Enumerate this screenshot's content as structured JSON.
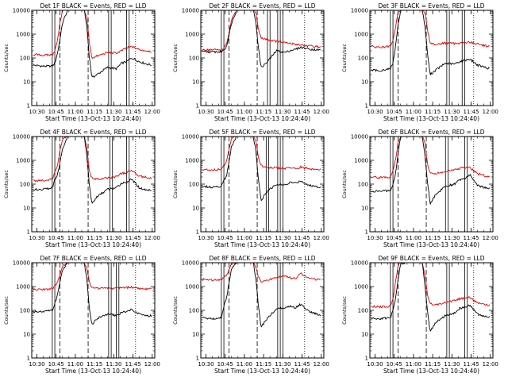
{
  "colors": {
    "events": "#000000",
    "lld": "#e00000",
    "axis": "#000000"
  },
  "chart_data": [
    {
      "type": "line",
      "title": "Det 1F BLACK = Events, RED = LLD",
      "xlabel": "Start Time (13-Oct-13 10:24:40)",
      "ylabel": "Counts/sec",
      "scale_y": "log",
      "ylim": [
        1,
        10000
      ],
      "xlim": [
        "10:26",
        "12:02"
      ],
      "x_ticks": [
        "10:30",
        "10:45",
        "11:00",
        "11:15",
        "11:30",
        "11:45",
        "12:00"
      ],
      "y_ticks": [
        "1",
        "10",
        "100",
        "1000",
        "10000"
      ],
      "x": [
        "10:27",
        "10:35",
        "10:42",
        "10:44",
        "10:46",
        "10:48",
        "10:50",
        "10:54",
        "10:58",
        "11:03",
        "11:07",
        "11:09",
        "11:11",
        "11:13",
        "11:17",
        "11:25",
        "11:32",
        "11:36",
        "11:40",
        "11:44",
        "11:50",
        "11:56",
        "12:00"
      ],
      "series": [
        {
          "name": "Events",
          "values": [
            50,
            45,
            45,
            60,
            150,
            600,
            3000,
            10000,
            10000,
            10000,
            10000,
            2000,
            100,
            15,
            20,
            40,
            35,
            60,
            70,
            100,
            70,
            55,
            50
          ]
        },
        {
          "name": "LLD",
          "values": [
            140,
            130,
            135,
            200,
            500,
            3000,
            10000,
            10000,
            10000,
            10000,
            10000,
            5000,
            400,
            100,
            120,
            170,
            160,
            200,
            260,
            300,
            220,
            200,
            190
          ]
        }
      ],
      "solid_lines": [
        "10:42",
        "10:44",
        "11:26",
        "11:28",
        "11:40",
        "11:42"
      ],
      "dashed_lines": [
        "10:48",
        "11:10"
      ],
      "dotted_lines": [
        "11:47"
      ]
    },
    {
      "type": "line",
      "title": "Det 2F BLACK = Events, RED = LLD",
      "xlabel": "Start Time (13-Oct-13 10:24:40)",
      "ylabel": "Counts/sec",
      "scale_y": "log",
      "ylim": [
        1,
        10000
      ],
      "xlim": [
        "10:26",
        "12:02"
      ],
      "x_ticks": [
        "10:30",
        "10:45",
        "11:00",
        "11:15",
        "11:30",
        "11:45",
        "12:00"
      ],
      "y_ticks": [
        "1",
        "10",
        "100",
        "1000",
        "10000"
      ],
      "x": [
        "10:27",
        "10:35",
        "10:42",
        "10:44",
        "10:46",
        "10:48",
        "10:50",
        "10:54",
        "10:58",
        "11:03",
        "11:07",
        "11:09",
        "11:11",
        "11:13",
        "11:17",
        "11:25",
        "11:32",
        "11:36",
        "11:40",
        "11:44",
        "11:50",
        "11:56",
        "12:00"
      ],
      "series": [
        {
          "name": "Events",
          "values": [
            180,
            180,
            180,
            220,
            300,
            900,
            3000,
            10000,
            10000,
            10000,
            10000,
            3000,
            250,
            40,
            60,
            200,
            170,
            210,
            230,
            280,
            240,
            220,
            210
          ]
        },
        {
          "name": "LLD",
          "values": [
            220,
            220,
            220,
            260,
            380,
            1100,
            4000,
            10000,
            10000,
            10000,
            10000,
            8000,
            1500,
            700,
            600,
            500,
            430,
            400,
            380,
            350,
            320,
            300,
            280
          ]
        }
      ],
      "solid_lines": [
        "10:42",
        "10:44",
        "11:18",
        "11:20",
        "11:26",
        "11:28",
        "11:30"
      ],
      "dashed_lines": [
        "10:48",
        "11:10"
      ],
      "dotted_lines": [
        "11:47"
      ]
    },
    {
      "type": "line",
      "title": "Det 3F BLACK = Events, RED = LLD",
      "xlabel": "Start Time (13-Oct-13 10:24:40)",
      "ylabel": "Counts/sec",
      "scale_y": "log",
      "ylim": [
        1,
        10000
      ],
      "xlim": [
        "10:26",
        "12:02"
      ],
      "x_ticks": [
        "10:30",
        "10:45",
        "11:00",
        "11:15",
        "11:30",
        "11:45",
        "12:00"
      ],
      "y_ticks": [
        "1",
        "10",
        "100",
        "1000",
        "10000"
      ],
      "x": [
        "10:27",
        "10:35",
        "10:42",
        "10:44",
        "10:46",
        "10:48",
        "10:50",
        "10:54",
        "10:58",
        "11:03",
        "11:07",
        "11:09",
        "11:11",
        "11:13",
        "11:17",
        "11:25",
        "11:32",
        "11:36",
        "11:40",
        "11:44",
        "11:50",
        "11:56",
        "12:00"
      ],
      "series": [
        {
          "name": "Events",
          "values": [
            30,
            30,
            35,
            60,
            300,
            2500,
            10000,
            10000,
            10000,
            10000,
            10000,
            2000,
            150,
            20,
            30,
            60,
            55,
            70,
            80,
            90,
            50,
            40,
            35
          ]
        },
        {
          "name": "LLD",
          "values": [
            300,
            280,
            300,
            500,
            2000,
            8000,
            10000,
            10000,
            10000,
            10000,
            10000,
            8000,
            1500,
            400,
            380,
            420,
            400,
            430,
            440,
            460,
            380,
            330,
            300
          ]
        }
      ],
      "solid_lines": [
        "10:42",
        "10:44",
        "11:26",
        "11:28",
        "11:38",
        "11:40"
      ],
      "dashed_lines": [
        "10:48",
        "11:10"
      ],
      "dotted_lines": [
        "11:47"
      ]
    },
    {
      "type": "line",
      "title": "Det 4F BLACK = Events, RED = LLD",
      "xlabel": "Start Time (13-Oct-13 10:24:40)",
      "ylabel": "Counts/sec",
      "scale_y": "log",
      "ylim": [
        1,
        10000
      ],
      "xlim": [
        "10:26",
        "12:02"
      ],
      "x_ticks": [
        "10:30",
        "10:45",
        "11:00",
        "11:15",
        "11:30",
        "11:45",
        "12:00"
      ],
      "y_ticks": [
        "1",
        "10",
        "100",
        "1000",
        "10000"
      ],
      "x": [
        "10:27",
        "10:35",
        "10:42",
        "10:44",
        "10:46",
        "10:48",
        "10:50",
        "10:54",
        "10:58",
        "11:03",
        "11:07",
        "11:09",
        "11:11",
        "11:13",
        "11:17",
        "11:25",
        "11:32",
        "11:36",
        "11:40",
        "11:44",
        "11:50",
        "11:56",
        "12:00"
      ],
      "series": [
        {
          "name": "Events",
          "values": [
            60,
            60,
            70,
            150,
            250,
            800,
            3000,
            10000,
            10000,
            10000,
            10000,
            1500,
            80,
            15,
            30,
            60,
            70,
            110,
            120,
            160,
            70,
            55,
            60
          ]
        },
        {
          "name": "LLD",
          "values": [
            140,
            140,
            160,
            300,
            600,
            2500,
            8000,
            10000,
            10000,
            10000,
            10000,
            4000,
            300,
            180,
            160,
            180,
            210,
            280,
            300,
            380,
            220,
            190,
            180
          ]
        }
      ],
      "solid_lines": [
        "10:42",
        "10:44",
        "11:27",
        "11:29",
        "11:40",
        "11:42"
      ],
      "dashed_lines": [
        "10:48",
        "11:10"
      ],
      "dotted_lines": [
        "11:47"
      ]
    },
    {
      "type": "line",
      "title": "Det 5F BLACK = Events, RED = LLD",
      "xlabel": "Start Time (13-Oct-13 10:24:40)",
      "ylabel": "Counts/sec",
      "scale_y": "log",
      "ylim": [
        1,
        10000
      ],
      "xlim": [
        "10:26",
        "12:02"
      ],
      "x_ticks": [
        "10:30",
        "10:45",
        "11:00",
        "11:15",
        "11:30",
        "11:45",
        "12:00"
      ],
      "y_ticks": [
        "1",
        "10",
        "100",
        "1000",
        "10000"
      ],
      "x": [
        "10:27",
        "10:35",
        "10:42",
        "10:44",
        "10:46",
        "10:48",
        "10:50",
        "10:54",
        "10:58",
        "11:03",
        "11:07",
        "11:09",
        "11:11",
        "11:13",
        "11:17",
        "11:25",
        "11:32",
        "11:36",
        "11:40",
        "11:44",
        "11:50",
        "11:56",
        "12:00"
      ],
      "series": [
        {
          "name": "Events",
          "values": [
            80,
            75,
            80,
            150,
            200,
            900,
            4000,
            10000,
            10000,
            10000,
            10000,
            2500,
            150,
            20,
            45,
            100,
            90,
            120,
            110,
            140,
            90,
            80,
            75
          ]
        },
        {
          "name": "LLD",
          "values": [
            420,
            400,
            420,
            600,
            900,
            3000,
            9000,
            10000,
            10000,
            10000,
            10000,
            6000,
            1200,
            600,
            520,
            480,
            450,
            480,
            460,
            520,
            440,
            420,
            400
          ]
        }
      ],
      "solid_lines": [
        "10:42",
        "10:44",
        "11:17",
        "11:19",
        "11:26",
        "11:28",
        "11:30"
      ],
      "dashed_lines": [
        "10:48",
        "11:10"
      ],
      "dotted_lines": [
        "11:47"
      ]
    },
    {
      "type": "line",
      "title": "Det 6F BLACK = Events, RED = LLD",
      "xlabel": "Start Time (13-Oct-13 10:24:40)",
      "ylabel": "Counts/sec",
      "scale_y": "log",
      "ylim": [
        1,
        10000
      ],
      "xlim": [
        "10:26",
        "12:02"
      ],
      "x_ticks": [
        "10:30",
        "10:45",
        "11:00",
        "11:15",
        "11:30",
        "11:45",
        "12:00"
      ],
      "y_ticks": [
        "1",
        "10",
        "100",
        "1000",
        "10000"
      ],
      "x": [
        "10:27",
        "10:35",
        "10:42",
        "10:44",
        "10:46",
        "10:48",
        "10:50",
        "10:54",
        "10:58",
        "11:03",
        "11:07",
        "11:09",
        "11:11",
        "11:13",
        "11:17",
        "11:25",
        "11:32",
        "11:36",
        "11:40",
        "11:44",
        "11:50",
        "11:56",
        "12:00"
      ],
      "series": [
        {
          "name": "Events",
          "values": [
            50,
            50,
            55,
            100,
            250,
            2000,
            10000,
            10000,
            10000,
            10000,
            10000,
            1500,
            120,
            15,
            35,
            80,
            100,
            150,
            170,
            250,
            90,
            70,
            70
          ]
        },
        {
          "name": "LLD",
          "values": [
            200,
            190,
            200,
            350,
            1000,
            6000,
            10000,
            10000,
            10000,
            10000,
            10000,
            5000,
            700,
            300,
            280,
            330,
            400,
            450,
            480,
            500,
            280,
            220,
            210
          ]
        }
      ],
      "solid_lines": [
        "10:42",
        "10:44",
        "11:25",
        "11:27",
        "11:40",
        "11:42"
      ],
      "dashed_lines": [
        "10:48",
        "11:10"
      ],
      "dotted_lines": [
        "11:47"
      ]
    },
    {
      "type": "line",
      "title": "Det 7F BLACK = Events, RED = LLD",
      "xlabel": "Start Time (13-Oct-13 10:24:40)",
      "ylabel": "Counts/sec",
      "scale_y": "log",
      "ylim": [
        1,
        10000
      ],
      "xlim": [
        "10:26",
        "12:02"
      ],
      "x_ticks": [
        "10:30",
        "10:45",
        "11:00",
        "11:15",
        "11:30",
        "11:45",
        "12:00"
      ],
      "y_ticks": [
        "1",
        "10",
        "100",
        "1000",
        "10000"
      ],
      "x": [
        "10:27",
        "10:35",
        "10:42",
        "10:44",
        "10:46",
        "10:48",
        "10:50",
        "10:54",
        "10:58",
        "11:03",
        "11:07",
        "11:09",
        "11:11",
        "11:13",
        "11:17",
        "11:25",
        "11:32",
        "11:36",
        "11:40",
        "11:44",
        "11:50",
        "11:56",
        "12:00"
      ],
      "series": [
        {
          "name": "Events",
          "values": [
            90,
            90,
            100,
            200,
            400,
            1500,
            5000,
            10000,
            10000,
            10000,
            10000,
            2000,
            120,
            25,
            45,
            70,
            60,
            80,
            90,
            110,
            70,
            60,
            60
          ]
        },
        {
          "name": "LLD",
          "values": [
            800,
            750,
            800,
            1000,
            1500,
            3000,
            7000,
            10000,
            10000,
            10000,
            10000,
            6000,
            1500,
            900,
            850,
            870,
            850,
            880,
            900,
            950,
            820,
            800,
            780
          ]
        }
      ],
      "solid_lines": [
        "10:42",
        "10:44",
        "11:26",
        "11:28",
        "11:32",
        "11:34"
      ],
      "dashed_lines": [
        "10:48",
        "11:10"
      ],
      "dotted_lines": [
        "11:47"
      ]
    },
    {
      "type": "line",
      "title": "Det 8F BLACK = Events, RED = LLD",
      "xlabel": "Start Time (13-Oct-13 10:24:40)",
      "ylabel": "Counts/sec",
      "scale_y": "log",
      "ylim": [
        1,
        10000
      ],
      "xlim": [
        "10:26",
        "12:02"
      ],
      "x_ticks": [
        "10:30",
        "10:45",
        "11:00",
        "11:15",
        "11:30",
        "11:45",
        "12:00"
      ],
      "y_ticks": [
        "1",
        "10",
        "100",
        "1000",
        "10000"
      ],
      "x": [
        "10:27",
        "10:35",
        "10:42",
        "10:44",
        "10:46",
        "10:48",
        "10:50",
        "10:54",
        "10:58",
        "11:03",
        "11:07",
        "11:09",
        "11:11",
        "11:13",
        "11:17",
        "11:25",
        "11:32",
        "11:36",
        "11:40",
        "11:44",
        "11:50",
        "11:56",
        "12:00"
      ],
      "series": [
        {
          "name": "Events",
          "values": [
            50,
            45,
            50,
            150,
            300,
            1500,
            6000,
            10000,
            10000,
            10000,
            10000,
            2000,
            150,
            20,
            40,
            120,
            130,
            150,
            130,
            180,
            90,
            70,
            60
          ]
        },
        {
          "name": "LLD",
          "values": [
            2000,
            1900,
            2000,
            2500,
            3000,
            5000,
            9000,
            10000,
            10000,
            10000,
            10000,
            7000,
            2500,
            1500,
            1700,
            2500,
            2700,
            2300,
            2200,
            3500,
            2300,
            2000,
            1900
          ]
        }
      ],
      "solid_lines": [
        "10:42",
        "10:44",
        "11:26",
        "11:28",
        "11:30"
      ],
      "dashed_lines": [
        "10:48",
        "11:10"
      ],
      "dotted_lines": [
        "11:47"
      ]
    },
    {
      "type": "line",
      "title": "Det 9F BLACK = Events, RED = LLD",
      "xlabel": "Start Time (13-Oct-13 10:24:40)",
      "ylabel": "Counts/sec",
      "scale_y": "log",
      "ylim": [
        1,
        10000
      ],
      "xlim": [
        "10:26",
        "12:02"
      ],
      "x_ticks": [
        "10:30",
        "10:45",
        "11:00",
        "11:15",
        "11:30",
        "11:45",
        "12:00"
      ],
      "y_ticks": [
        "1",
        "10",
        "100",
        "1000",
        "10000"
      ],
      "x": [
        "10:27",
        "10:35",
        "10:42",
        "10:44",
        "10:46",
        "10:48",
        "10:50",
        "10:54",
        "10:58",
        "11:03",
        "11:07",
        "11:09",
        "11:11",
        "11:13",
        "11:17",
        "11:25",
        "11:32",
        "11:36",
        "11:40",
        "11:44",
        "11:50",
        "11:56",
        "12:00"
      ],
      "series": [
        {
          "name": "Events",
          "values": [
            45,
            45,
            50,
            100,
            300,
            2000,
            9000,
            10000,
            10000,
            10000,
            10000,
            1000,
            100,
            12,
            30,
            60,
            80,
            120,
            130,
            160,
            70,
            55,
            50
          ]
        },
        {
          "name": "LLD",
          "values": [
            150,
            140,
            150,
            300,
            1500,
            8000,
            10000,
            10000,
            10000,
            10000,
            10000,
            3000,
            400,
            200,
            170,
            210,
            260,
            300,
            320,
            350,
            200,
            170,
            160
          ]
        }
      ],
      "solid_lines": [
        "10:42",
        "10:44",
        "11:26",
        "11:28",
        "11:40",
        "11:42"
      ],
      "dashed_lines": [
        "10:48",
        "11:10"
      ],
      "dotted_lines": [
        "11:47"
      ]
    }
  ]
}
